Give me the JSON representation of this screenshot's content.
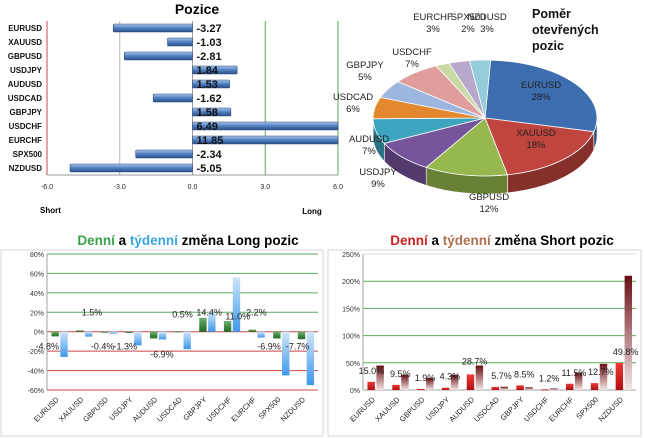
{
  "chart_data": [
    {
      "type": "bar",
      "orientation": "horizontal",
      "title": "Pozice",
      "categories": [
        "EURUSD",
        "XAUUSD",
        "GBPUSD",
        "USDJPY",
        "AUDUSD",
        "USDCAD",
        "GBPJPY",
        "USDCHF",
        "EURCHF",
        "SPX500",
        "NZDUSD"
      ],
      "values": [
        -3.27,
        -1.03,
        -2.81,
        1.84,
        1.53,
        -1.62,
        1.58,
        6.49,
        11.85,
        -2.34,
        -5.05
      ],
      "value_labels": [
        "-3.27",
        "-1.03",
        "-2.81",
        "1.84",
        "1.53",
        "-1.62",
        "1.58",
        "6.49",
        "11.85",
        "-2.34",
        "-5.05"
      ],
      "xlim": [
        -6,
        6
      ],
      "x_ticks": [
        "-6.0",
        "-3.0",
        "0.0",
        "3.0",
        "6.0"
      ],
      "left_caption": "Short",
      "right_caption": "Long",
      "bar_color": "#4f7fbf"
    },
    {
      "type": "pie",
      "title_lines": [
        "Poměr",
        "otevřených",
        "pozic"
      ],
      "slices": [
        {
          "label": "EURUSD",
          "pct": "28%",
          "value": 28,
          "color": "#3d6eb0"
        },
        {
          "label": "XAUUSD",
          "pct": "18%",
          "value": 18,
          "color": "#c0453f"
        },
        {
          "label": "GBPUSD",
          "pct": "12%",
          "value": 12,
          "color": "#96b84f"
        },
        {
          "label": "USDJPY",
          "pct": "9%",
          "value": 9,
          "color": "#76549c"
        },
        {
          "label": "AUDUSD",
          "pct": "7%",
          "value": 7,
          "color": "#3ca4bf"
        },
        {
          "label": "USDCAD",
          "pct": "6%",
          "value": 6,
          "color": "#e3882f"
        },
        {
          "label": "GBPJPY",
          "pct": "5%",
          "value": 5,
          "color": "#9db6df"
        },
        {
          "label": "USDCHF",
          "pct": "7%",
          "value": 7,
          "color": "#df9e9c"
        },
        {
          "label": "SPX500",
          "pct": "2%",
          "value": 2,
          "color": "#c9d9a5"
        },
        {
          "label": "EURCHF",
          "pct": "3%",
          "value": 3,
          "color": "#b7a8cc"
        },
        {
          "label": "NZDUSD",
          "pct": "3%",
          "value": 3,
          "color": "#95ccd9"
        }
      ]
    },
    {
      "type": "bar",
      "title_parts": [
        {
          "text": "Denní",
          "color": "#3aa24a"
        },
        {
          "text": " a ",
          "color": "#000000"
        },
        {
          "text": "týdenní",
          "color": "#3aa6e0"
        },
        {
          "text": " změna Long pozic",
          "color": "#000000"
        }
      ],
      "categories": [
        "EURUSD",
        "XAUUSD",
        "GBPUSD",
        "USDJPY",
        "AUDUSD",
        "USDCAD",
        "GBPJPY",
        "USDCHF",
        "EURCHF",
        "SPX500",
        "NZDUSD"
      ],
      "series": [
        {
          "name": "Denní",
          "color": "#2f7f2f",
          "values": [
            -4.8,
            1.5,
            -0.4,
            -1.3,
            -6.9,
            0.5,
            14.4,
            11.0,
            2.2,
            -6.9,
            -7.7
          ]
        },
        {
          "name": "Týdenní",
          "color": "#4a9ee8",
          "values": [
            -26,
            -5,
            -2,
            -14,
            -8,
            -18,
            20,
            56,
            -6,
            -45,
            -55
          ]
        }
      ],
      "value_labels": [
        "-4.8%",
        "1.5%",
        "-0.4%",
        "-1.3%",
        "-6.9%",
        "0.5%",
        "14.4%",
        "11.0%",
        "2.2%",
        "-6.9%",
        "-7.7%"
      ],
      "ylim": [
        -60,
        80
      ],
      "y_ticks": [
        "-60%",
        "-40%",
        "-20%",
        "0%",
        "20%",
        "40%",
        "60%",
        "80%"
      ]
    },
    {
      "type": "bar",
      "title_parts": [
        {
          "text": "Denní",
          "color": "#d02020"
        },
        {
          "text": " a ",
          "color": "#000000"
        },
        {
          "text": "týdenní",
          "color": "#b07050"
        },
        {
          "text": " změna Short pozic",
          "color": "#000000"
        }
      ],
      "categories": [
        "EURUSD",
        "XAUUSD",
        "GBPUSD",
        "USDJPY",
        "AUDUSD",
        "USDCAD",
        "GBPJPY",
        "USDCHF",
        "EURCHF",
        "SPX500",
        "NZDUSD"
      ],
      "series": [
        {
          "name": "Denní",
          "color": "#c81c1c",
          "values": [
            15.0,
            9.5,
            1.9,
            4.3,
            28.7,
            5.7,
            8.5,
            1.2,
            11.5,
            12.7,
            49.8
          ]
        },
        {
          "name": "Týdenní",
          "color": "#7a1c1c",
          "values": [
            45,
            28,
            22,
            28,
            45,
            6,
            5,
            3,
            32,
            48,
            210
          ]
        }
      ],
      "value_labels": [
        "15.0%",
        "9.5%",
        "1.9%",
        "4.3%",
        "28.7%",
        "5.7%",
        "8.5%",
        "1.2%",
        "11.5%",
        "12.7%",
        "49.8%"
      ],
      "ylim": [
        0,
        250
      ],
      "y_ticks": [
        "0%",
        "50%",
        "100%",
        "150%",
        "200%",
        "250%"
      ]
    }
  ]
}
